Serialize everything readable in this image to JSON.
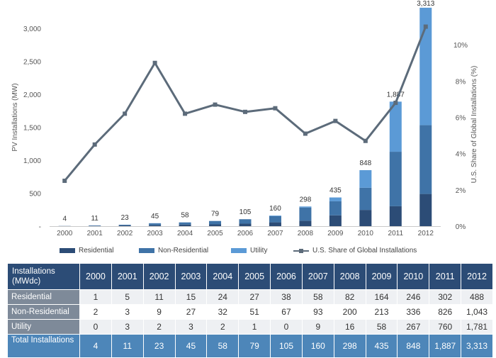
{
  "chart_data": {
    "type": "bar",
    "stacked": true,
    "categories": [
      "2000",
      "2001",
      "2002",
      "2003",
      "2004",
      "2005",
      "2006",
      "2007",
      "2008",
      "2009",
      "2010",
      "2011",
      "2012"
    ],
    "series": [
      {
        "name": "Residential",
        "values": [
          1,
          5,
          11,
          15,
          24,
          27,
          38,
          58,
          82,
          164,
          246,
          302,
          488
        ],
        "color": "#2c4c76"
      },
      {
        "name": "Non-Residential",
        "values": [
          2,
          3,
          9,
          27,
          32,
          51,
          67,
          93,
          200,
          213,
          336,
          826,
          1043
        ],
        "color": "#3f73a7"
      },
      {
        "name": "Utility",
        "values": [
          0,
          3,
          2,
          3,
          2,
          1,
          0,
          9,
          16,
          58,
          267,
          760,
          1781
        ],
        "color": "#5b9ad6"
      }
    ],
    "totals": [
      "4",
      "11",
      "23",
      "45",
      "58",
      "79",
      "105",
      "160",
      "298",
      "435",
      "848",
      "1,887",
      "3,313"
    ],
    "line_series": {
      "name": "U.S. Share of Global Installations",
      "values": [
        2.5,
        4.5,
        6.2,
        9.0,
        6.2,
        6.7,
        6.3,
        6.5,
        5.1,
        5.8,
        4.7,
        6.8,
        11.0
      ],
      "color": "#5c6b7a"
    },
    "ylabel": "PV Installations (MW)",
    "ylabel_right": "U.S. Share of Global Installations (%)",
    "ylim": [
      0,
      3300
    ],
    "ylim_right": [
      0,
      12
    ],
    "yticks": [
      {
        "value": 0,
        "label": "-"
      },
      {
        "value": 500,
        "label": "500"
      },
      {
        "value": 1000,
        "label": "1,000"
      },
      {
        "value": 1500,
        "label": "1,500"
      },
      {
        "value": 2000,
        "label": "2,000"
      },
      {
        "value": 2500,
        "label": "2,500"
      },
      {
        "value": 3000,
        "label": "3,000"
      }
    ],
    "yticks_right": [
      {
        "value": 0,
        "label": "0%"
      },
      {
        "value": 2,
        "label": "2%"
      },
      {
        "value": 4,
        "label": "4%"
      },
      {
        "value": 6,
        "label": "6%"
      },
      {
        "value": 8,
        "label": "8%"
      },
      {
        "value": 10,
        "label": "10%"
      }
    ],
    "grid": false,
    "legend": "bottom"
  },
  "legend": {
    "residential": "Residential",
    "non_residential": "Non-Residential",
    "utility": "Utility",
    "share": "U.S. Share of Global Installations"
  },
  "table": {
    "corner": "Installations (MWdc)",
    "years": [
      "2000",
      "2001",
      "2002",
      "2003",
      "2004",
      "2005",
      "2006",
      "2007",
      "2008",
      "2009",
      "2010",
      "2011",
      "2012"
    ],
    "rows": [
      {
        "label": "Residential",
        "values": [
          "1",
          "5",
          "11",
          "15",
          "24",
          "27",
          "38",
          "58",
          "82",
          "164",
          "246",
          "302",
          "488"
        ]
      },
      {
        "label": "Non-Residential",
        "values": [
          "2",
          "3",
          "9",
          "27",
          "32",
          "51",
          "67",
          "93",
          "200",
          "213",
          "336",
          "826",
          "1,043"
        ]
      },
      {
        "label": "Utility",
        "values": [
          "0",
          "3",
          "2",
          "3",
          "2",
          "1",
          "0",
          "9",
          "16",
          "58",
          "267",
          "760",
          "1,781"
        ]
      },
      {
        "label": "Total Installations",
        "values": [
          "4",
          "11",
          "23",
          "45",
          "58",
          "79",
          "105",
          "160",
          "298",
          "435",
          "848",
          "1,887",
          "3,313"
        ]
      }
    ]
  }
}
